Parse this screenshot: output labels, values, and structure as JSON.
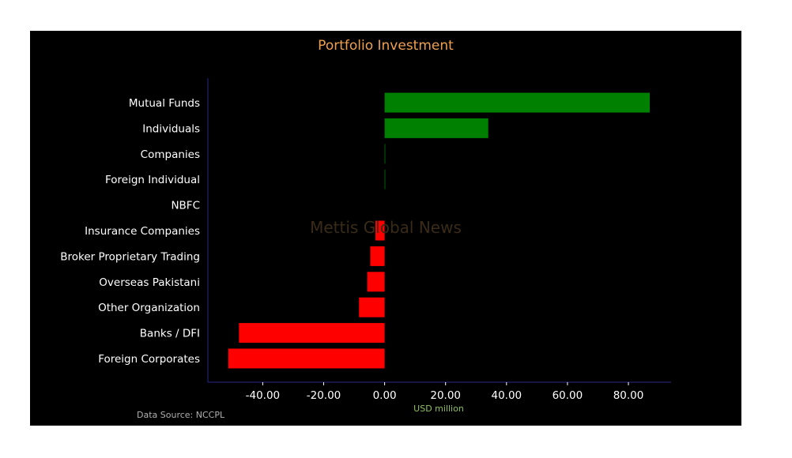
{
  "chart_data": {
    "type": "bar",
    "orientation": "horizontal",
    "title": "Portfolio Investment",
    "xlabel": "USD million",
    "ylabel": "",
    "source": "Data Source: NCCPL",
    "watermark": "Mettis Global News",
    "categories": [
      "Mutual Funds",
      "Individuals",
      "Companies",
      "Foreign Individual",
      "NBFC",
      "Insurance Companies",
      "Broker Proprietary Trading",
      "Overseas Pakistani",
      "Other Organization",
      "Banks / DFI",
      "Foreign Corporates "
    ],
    "values": [
      87.0,
      34.0,
      0.2,
      0.2,
      0.0,
      -3.0,
      -4.7,
      -5.7,
      -8.4,
      -47.8,
      -51.3
    ],
    "xlim": [
      -58,
      94
    ],
    "xticks": [
      -40,
      -20,
      0,
      20,
      40,
      60,
      80
    ],
    "xtick_labels": [
      "-40.00",
      "-20.00",
      "0.00",
      "20.00",
      "40.00",
      "60.00",
      "80.00"
    ],
    "colors": {
      "positive": "#008000",
      "negative": "#ff0000",
      "background": "#000000",
      "axis": "#2a2a8a"
    },
    "grid": false,
    "legend": "none"
  }
}
